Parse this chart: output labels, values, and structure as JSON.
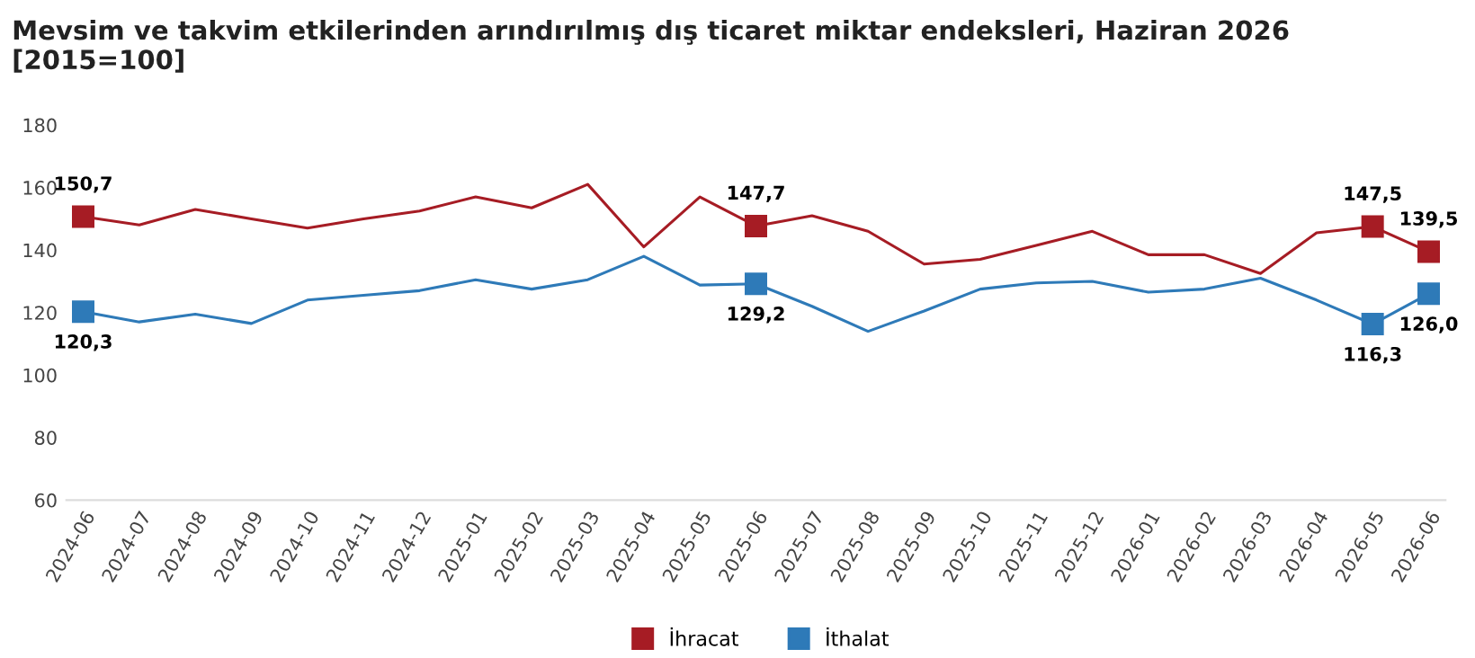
{
  "chart_data": {
    "type": "line",
    "title": "Mevsim ve takvim etkilerinden arındırılmış dış ticaret miktar endeksleri, Haziran 2026\n[2015=100]",
    "categories": [
      "2024-06",
      "2024-07",
      "2024-08",
      "2024-09",
      "2024-10",
      "2024-11",
      "2024-12",
      "2025-01",
      "2025-02",
      "2025-03",
      "2025-04",
      "2025-05",
      "2025-06",
      "2025-07",
      "2025-08",
      "2025-09",
      "2025-10",
      "2025-11",
      "2025-12",
      "2026-01",
      "2026-02",
      "2026-03",
      "2026-04",
      "2026-05",
      "2026-06"
    ],
    "series": [
      {
        "name": "İhracat",
        "color": "#a61c24",
        "values": [
          150.7,
          148,
          153,
          150,
          147,
          150,
          152.5,
          157,
          153.5,
          161,
          141,
          157,
          147.7,
          151,
          146,
          135.5,
          137,
          141.5,
          146,
          138.5,
          138.5,
          132.5,
          145.5,
          147.5,
          139.5
        ],
        "value_labels": [
          "150,7",
          null,
          null,
          null,
          null,
          null,
          null,
          null,
          null,
          null,
          null,
          null,
          "147,7",
          null,
          null,
          null,
          null,
          null,
          null,
          null,
          null,
          null,
          null,
          "147,5",
          "139,5"
        ]
      },
      {
        "name": "İthalat",
        "color": "#2e7ab8",
        "values": [
          120.3,
          117,
          119.5,
          116.5,
          124,
          125.5,
          127,
          130.5,
          127.5,
          130.5,
          138,
          128.8,
          129.2,
          122,
          114,
          120.5,
          127.5,
          129.5,
          130,
          126.5,
          127.5,
          131,
          124,
          116.3,
          126.0
        ],
        "value_labels": [
          "120,3",
          null,
          null,
          null,
          null,
          null,
          null,
          null,
          null,
          null,
          null,
          null,
          "129,2",
          null,
          null,
          null,
          null,
          null,
          null,
          null,
          null,
          null,
          null,
          "116,3",
          "126,0"
        ]
      }
    ],
    "ylim": [
      60,
      180
    ],
    "yticks": [
      60,
      80,
      100,
      120,
      140,
      160,
      180
    ],
    "grid": false,
    "legend": "bottom"
  }
}
